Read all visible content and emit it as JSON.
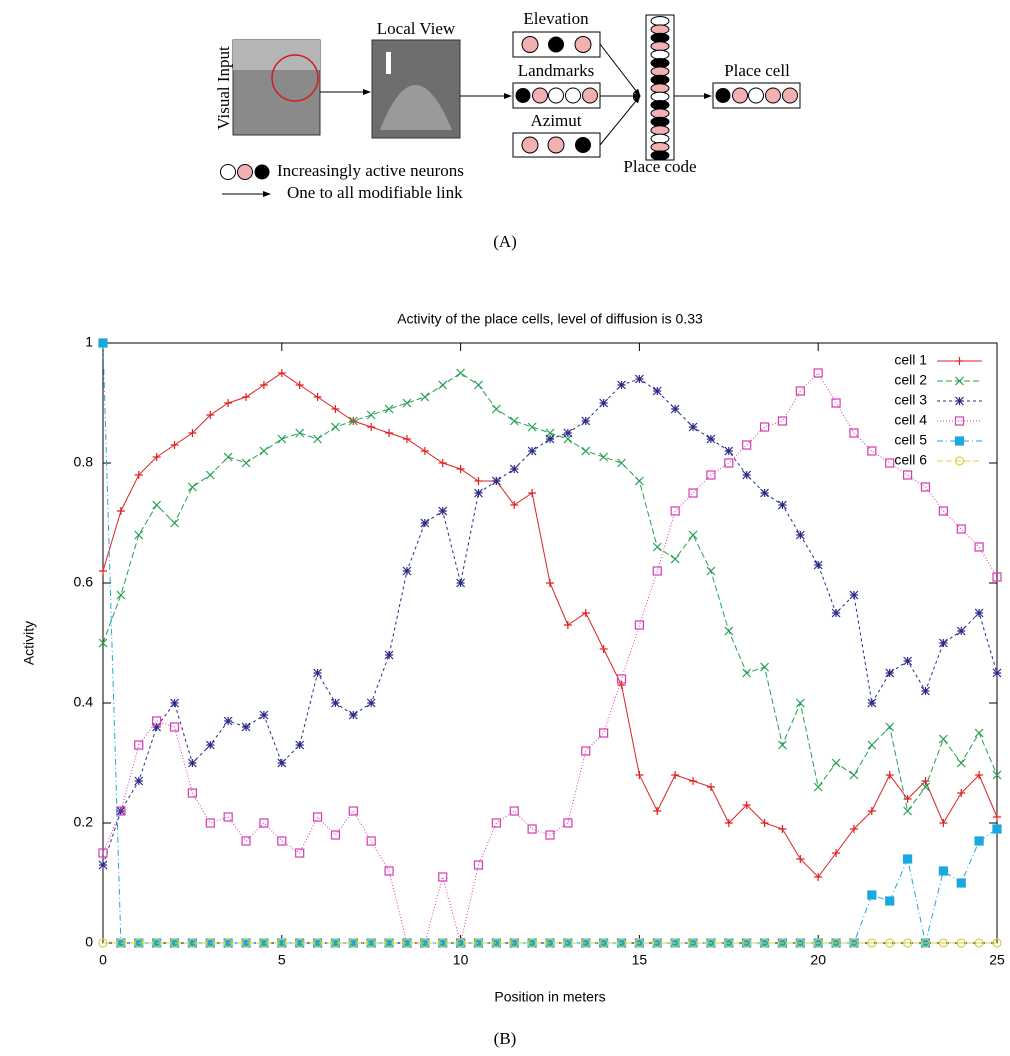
{
  "diagram": {
    "visual_input": "Visual Input",
    "local_view": "Local View",
    "elevation": "Elevation",
    "landmarks": "Landmarks",
    "azimut": "Azimut",
    "place_code": "Place code",
    "place_cell": "Place cell",
    "legend_neurons": "Increasingly active neurons",
    "legend_link": "One to all modifiable link",
    "caption": "(A)"
  },
  "chart_data": {
    "type": "line",
    "title": "Activity of the place cells, level of diffusion is 0.33",
    "xlabel": "Position in meters",
    "ylabel": "Activity",
    "caption": "(B)",
    "xlim": [
      0,
      25
    ],
    "ylim": [
      0,
      1
    ],
    "xticks": [
      0,
      5,
      10,
      15,
      20,
      25
    ],
    "yticks": [
      0,
      0.2,
      0.4,
      0.6,
      0.8,
      1
    ],
    "grid": false,
    "legend": "upper right",
    "x": [
      0,
      0.5,
      1,
      1.5,
      2,
      2.5,
      3,
      3.5,
      4,
      4.5,
      5,
      5.5,
      6,
      6.5,
      7,
      7.5,
      8,
      8.5,
      9,
      9.5,
      10,
      10.5,
      11,
      11.5,
      12,
      12.5,
      13,
      13.5,
      14,
      14.5,
      15,
      15.5,
      16,
      16.5,
      17,
      17.5,
      18,
      18.5,
      19,
      19.5,
      20,
      20.5,
      21,
      21.5,
      22,
      22.5,
      23,
      23.5,
      24,
      24.5,
      25
    ],
    "series": [
      {
        "name": "cell 1",
        "color": "#e02020",
        "values": [
          0.62,
          0.72,
          0.78,
          0.81,
          0.83,
          0.85,
          0.88,
          0.9,
          0.91,
          0.93,
          0.95,
          0.93,
          0.91,
          0.89,
          0.87,
          0.86,
          0.85,
          0.84,
          0.82,
          0.8,
          0.79,
          0.77,
          0.77,
          0.73,
          0.75,
          0.6,
          0.53,
          0.55,
          0.49,
          0.43,
          0.28,
          0.22,
          0.28,
          0.27,
          0.26,
          0.2,
          0.23,
          0.2,
          0.19,
          0.14,
          0.11,
          0.15,
          0.19,
          0.22,
          0.28,
          0.24,
          0.27,
          0.2,
          0.25,
          0.28,
          0.21
        ]
      },
      {
        "name": "cell 2",
        "color": "#22a050",
        "values": [
          0.5,
          0.58,
          0.68,
          0.73,
          0.7,
          0.76,
          0.78,
          0.81,
          0.8,
          0.82,
          0.84,
          0.85,
          0.84,
          0.86,
          0.87,
          0.88,
          0.89,
          0.9,
          0.91,
          0.93,
          0.95,
          0.93,
          0.89,
          0.87,
          0.86,
          0.85,
          0.84,
          0.82,
          0.81,
          0.8,
          0.77,
          0.66,
          0.64,
          0.68,
          0.62,
          0.52,
          0.45,
          0.46,
          0.33,
          0.4,
          0.26,
          0.3,
          0.28,
          0.33,
          0.36,
          0.22,
          0.26,
          0.34,
          0.3,
          0.35,
          0.28
        ]
      },
      {
        "name": "cell 3",
        "color": "#2a2a8a",
        "values": [
          0.13,
          0.22,
          0.27,
          0.36,
          0.4,
          0.3,
          0.33,
          0.37,
          0.36,
          0.38,
          0.3,
          0.33,
          0.45,
          0.4,
          0.38,
          0.4,
          0.48,
          0.62,
          0.7,
          0.72,
          0.6,
          0.75,
          0.77,
          0.79,
          0.82,
          0.84,
          0.85,
          0.87,
          0.9,
          0.93,
          0.94,
          0.92,
          0.89,
          0.86,
          0.84,
          0.82,
          0.78,
          0.75,
          0.73,
          0.68,
          0.63,
          0.55,
          0.58,
          0.4,
          0.45,
          0.47,
          0.42,
          0.5,
          0.52,
          0.55,
          0.45
        ]
      },
      {
        "name": "cell 4",
        "color": "#d83ab0",
        "values": [
          0.15,
          0.22,
          0.33,
          0.37,
          0.36,
          0.25,
          0.2,
          0.21,
          0.17,
          0.2,
          0.17,
          0.15,
          0.21,
          0.18,
          0.22,
          0.17,
          0.12,
          0,
          0,
          0.11,
          0,
          0.13,
          0.2,
          0.22,
          0.19,
          0.18,
          0.2,
          0.32,
          0.35,
          0.44,
          0.53,
          0.62,
          0.72,
          0.75,
          0.78,
          0.8,
          0.83,
          0.86,
          0.87,
          0.92,
          0.95,
          0.9,
          0.85,
          0.82,
          0.8,
          0.78,
          0.76,
          0.72,
          0.69,
          0.66,
          0.61
        ]
      },
      {
        "name": "cell 5",
        "color": "#1aa8e0",
        "values": [
          1,
          0,
          0,
          0,
          0,
          0,
          0,
          0,
          0,
          0,
          0,
          0,
          0,
          0,
          0,
          0,
          0,
          0,
          0,
          0,
          0,
          0,
          0,
          0,
          0,
          0,
          0,
          0,
          0,
          0,
          0,
          0,
          0,
          0,
          0,
          0,
          0,
          0,
          0,
          0,
          0,
          0,
          0,
          0.08,
          0.07,
          0.14,
          0,
          0.12,
          0.1,
          0.17,
          0.19
        ]
      },
      {
        "name": "cell 6",
        "color": "#d8d040",
        "values": [
          0,
          0,
          0,
          0,
          0,
          0,
          0,
          0,
          0,
          0,
          0,
          0,
          0,
          0,
          0,
          0,
          0,
          0,
          0,
          0,
          0,
          0,
          0,
          0,
          0,
          0,
          0,
          0,
          0,
          0,
          0,
          0,
          0,
          0,
          0,
          0,
          0,
          0,
          0,
          0,
          0,
          0,
          0,
          0,
          0,
          0,
          0,
          0,
          0,
          0,
          0
        ]
      }
    ]
  }
}
